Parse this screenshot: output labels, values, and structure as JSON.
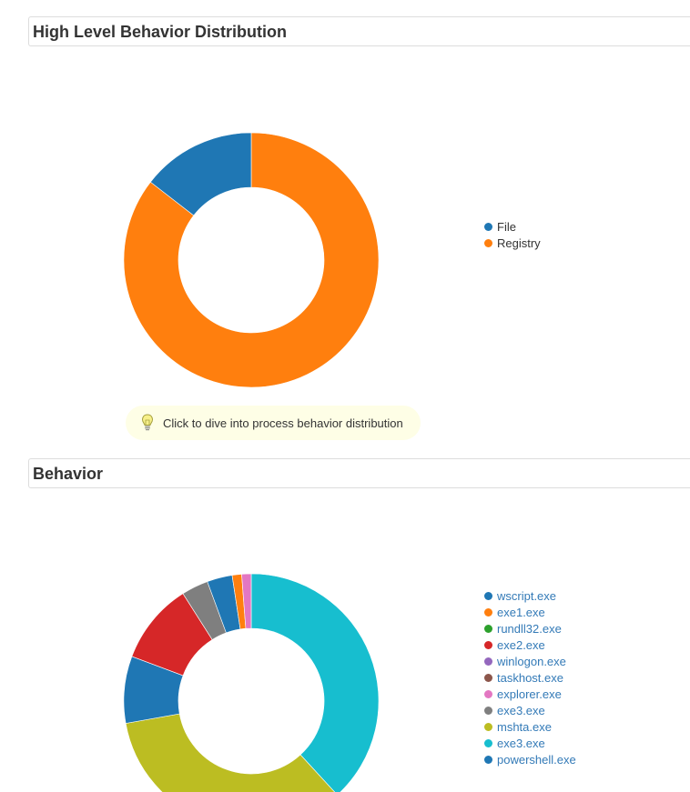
{
  "section1": {
    "title": "High Level Behavior Distribution",
    "hint_text": "Click to dive into process behavior distribution",
    "hint_icon": "lightbulb-icon"
  },
  "section2": {
    "title": "Behavior"
  },
  "chart_data": [
    {
      "type": "pie",
      "variant": "donut",
      "title": "High Level Behavior Distribution",
      "legend_position": "right",
      "categories": [
        "File",
        "Registry"
      ],
      "values": [
        14.5,
        85.5
      ],
      "colors": [
        "#1f77b4",
        "#ff7f0e"
      ]
    },
    {
      "type": "pie",
      "variant": "donut",
      "title": "Behavior",
      "legend_position": "right",
      "categories": [
        "wscript.exe",
        "exe1.exe",
        "rundll32.exe",
        "exe2.exe",
        "winlogon.exe",
        "taskhost.exe",
        "explorer.exe",
        "exe3.exe",
        "mshta.exe",
        "exe3.exe",
        "powershell.exe"
      ],
      "values": [
        3.2,
        1.2,
        0,
        10.3,
        0,
        0,
        1.2,
        3.4,
        34,
        38.2,
        8.5
      ],
      "colors": [
        "#1f77b4",
        "#ff7f0e",
        "#2ca02c",
        "#d62728",
        "#9467bd",
        "#8c564b",
        "#e377c2",
        "#7f7f7f",
        "#bcbd22",
        "#17becf",
        "#1f77b4"
      ]
    }
  ],
  "legend1": [
    {
      "label": "File",
      "color": "#1f77b4"
    },
    {
      "label": "Registry",
      "color": "#ff7f0e"
    }
  ],
  "legend2": [
    {
      "label": "wscript.exe",
      "color": "#1f77b4"
    },
    {
      "label": "exe1.exe",
      "color": "#ff7f0e"
    },
    {
      "label": "rundll32.exe",
      "color": "#2ca02c"
    },
    {
      "label": "exe2.exe",
      "color": "#d62728"
    },
    {
      "label": "winlogon.exe",
      "color": "#9467bd"
    },
    {
      "label": "taskhost.exe",
      "color": "#8c564b"
    },
    {
      "label": "explorer.exe",
      "color": "#e377c2"
    },
    {
      "label": "exe3.exe",
      "color": "#7f7f7f"
    },
    {
      "label": "mshta.exe",
      "color": "#bcbd22"
    },
    {
      "label": "exe3.exe",
      "color": "#17becf"
    },
    {
      "label": "powershell.exe",
      "color": "#1f77b4"
    }
  ],
  "donut2_draw_order": [
    {
      "ref": 9,
      "value": 38.2,
      "color": "#17becf"
    },
    {
      "ref": 8,
      "value": 34.0,
      "color": "#bcbd22"
    },
    {
      "ref": 10,
      "value": 8.5,
      "color": "#1f77b4"
    },
    {
      "ref": 3,
      "value": 10.3,
      "color": "#d62728"
    },
    {
      "ref": 7,
      "value": 3.4,
      "color": "#7f7f7f"
    },
    {
      "ref": 0,
      "value": 3.2,
      "color": "#1f77b4"
    },
    {
      "ref": 1,
      "value": 1.2,
      "color": "#ff7f0e"
    },
    {
      "ref": 6,
      "value": 1.2,
      "color": "#e377c2"
    }
  ]
}
